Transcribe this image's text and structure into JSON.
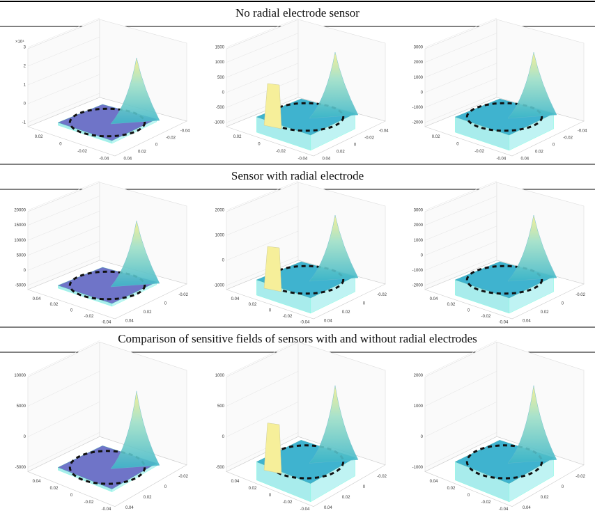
{
  "rows": [
    {
      "title": "No radial electrode sensor",
      "panels": [
        {
          "exponent": "×10⁴",
          "z_ticks": [
            "3",
            "2",
            "1",
            "0",
            "-1"
          ],
          "x_ticks": [
            "0.02",
            "0",
            "-0.02",
            "-0.04"
          ],
          "y_ticks": [
            "-0.04",
            "-0.02",
            "0",
            "0.02",
            "0.04"
          ]
        },
        {
          "z_ticks": [
            "1500",
            "1000",
            "500",
            "0",
            "-500",
            "-1000"
          ],
          "x_ticks": [
            "0.02",
            "0",
            "-0.02",
            "-0.04"
          ],
          "y_ticks": [
            "-0.04",
            "-0.02",
            "0",
            "0.02",
            "0.04"
          ]
        },
        {
          "z_ticks": [
            "3000",
            "2000",
            "1000",
            "0",
            "-1000",
            "-2000"
          ],
          "x_ticks": [
            "0.02",
            "0",
            "-0.02",
            "-0.04"
          ],
          "y_ticks": [
            "-0.04",
            "-0.02",
            "0",
            "0.02",
            "0.04"
          ]
        }
      ]
    },
    {
      "title": "Sensor with radial electrode",
      "panels": [
        {
          "z_ticks": [
            "20000",
            "15000",
            "10000",
            "5000",
            "0",
            "-5000"
          ],
          "x_ticks": [
            "0.04",
            "0.02",
            "0",
            "-0.02",
            "-0.04"
          ],
          "y_ticks": [
            "-0.02",
            "0",
            "0.02",
            "0.04"
          ]
        },
        {
          "z_ticks": [
            "2000",
            "1000",
            "0",
            "-1000"
          ],
          "x_ticks": [
            "0.04",
            "0.02",
            "0",
            "-0.02",
            "-0.04"
          ],
          "y_ticks": [
            "-0.02",
            "0",
            "0.02",
            "0.04"
          ]
        },
        {
          "z_ticks": [
            "3000",
            "2000",
            "1000",
            "0",
            "-1000",
            "-2000"
          ],
          "x_ticks": [
            "0.04",
            "0.02",
            "0",
            "-0.02",
            "-0.04"
          ],
          "y_ticks": [
            "-0.02",
            "0",
            "0.02",
            "0.04"
          ]
        }
      ]
    },
    {
      "title": "Comparison of sensitive fields of sensors with and without radial electrodes",
      "panels": [
        {
          "z_ticks": [
            "10000",
            "5000",
            "0",
            "-5000"
          ],
          "x_ticks": [
            "0.04",
            "0.02",
            "0",
            "-0.02",
            "-0.04"
          ],
          "y_ticks": [
            "-0.02",
            "0",
            "0.02",
            "0.04"
          ]
        },
        {
          "z_ticks": [
            "1000",
            "500",
            "0",
            "-500"
          ],
          "x_ticks": [
            "0.04",
            "0.02",
            "0",
            "-0.02",
            "-0.04"
          ],
          "y_ticks": [
            "-0.02",
            "0",
            "0.02",
            "0.04"
          ]
        },
        {
          "z_ticks": [
            "2000",
            "1000",
            "0",
            "-1000"
          ],
          "x_ticks": [
            "0.04",
            "0.02",
            "0",
            "-0.02",
            "-0.04"
          ],
          "y_ticks": [
            "-0.02",
            "0",
            "0.02",
            "0.04"
          ]
        }
      ]
    }
  ]
}
